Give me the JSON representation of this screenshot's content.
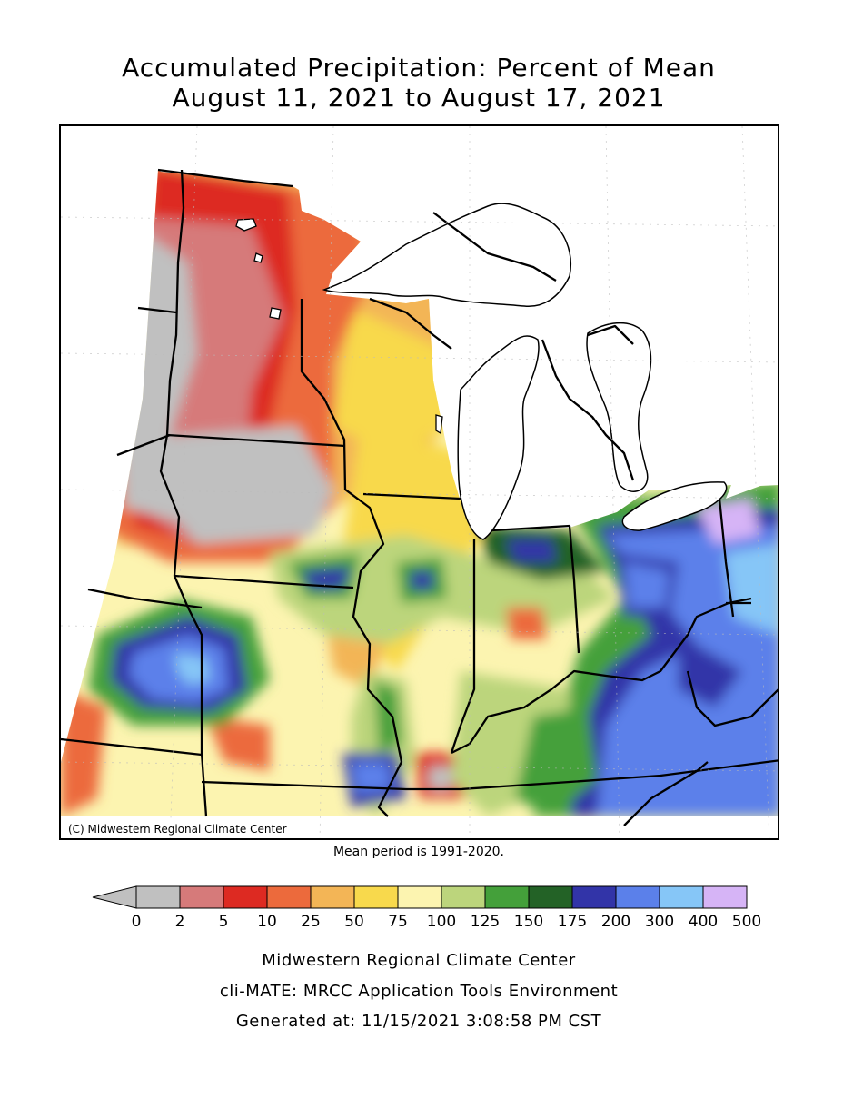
{
  "title": {
    "line1": "Accumulated Precipitation: Percent of Mean",
    "line2": "August 11, 2021 to August 17, 2021"
  },
  "map": {
    "copyright": "(C) Midwestern Regional Climate Center",
    "mean_period": "Mean period is 1991-2020."
  },
  "legend": {
    "breaks": [
      "0",
      "2",
      "5",
      "10",
      "25",
      "50",
      "75",
      "100",
      "125",
      "150",
      "175",
      "200",
      "300",
      "400",
      "500"
    ],
    "colors": [
      "#c0c0c0",
      "#d67a7a",
      "#dd2a22",
      "#ec6a3c",
      "#f3b556",
      "#f8d94c",
      "#fcf4b0",
      "#bcd57c",
      "#44a03a",
      "#236226",
      "#3234a8",
      "#5b80ea",
      "#86c6f7",
      "#d6b4f6"
    ],
    "below_color": "#c0c0c0"
  },
  "footer": {
    "line1": "Midwestern Regional Climate Center",
    "line2": "cli-MATE: MRCC Application Tools Environment",
    "line3": "Generated at: 11/15/2021 3:08:58 PM CST"
  }
}
